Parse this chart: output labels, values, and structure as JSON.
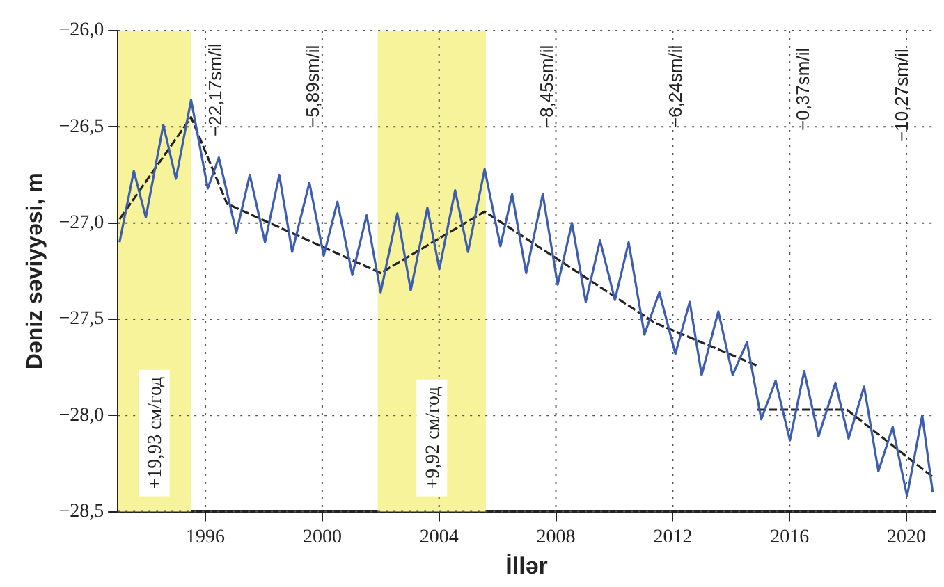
{
  "chart_data": {
    "type": "line",
    "xlabel": "İllər",
    "ylabel": "Dəniz səviyyəsi, m",
    "xlim": [
      1993,
      2021
    ],
    "ylim": [
      -28.5,
      -26.0
    ],
    "xticks": [
      1996,
      2000,
      2004,
      2008,
      2012,
      2016,
      2020
    ],
    "yticks": [
      {
        "value": -28.5,
        "label": "−28,5"
      },
      {
        "value": -28.0,
        "label": "−28,0"
      },
      {
        "value": -27.5,
        "label": "−27,5"
      },
      {
        "value": -27.0,
        "label": "−27,0"
      },
      {
        "value": -26.5,
        "label": "−26,5"
      },
      {
        "value": -26.0,
        "label": "−26,0"
      }
    ],
    "grid": true,
    "series": [
      {
        "color": "#3d5db0",
        "x": [
          1993.06,
          1993.55,
          1993.96,
          1994.56,
          1994.99,
          1995.51,
          1996.08,
          1996.46,
          1997.06,
          1997.52,
          1998.04,
          1998.53,
          1998.97,
          1999.56,
          2000.05,
          2000.52,
          2001.03,
          2001.52,
          2002.0,
          2002.57,
          2003.03,
          2003.6,
          2004.01,
          2004.55,
          2004.99,
          2005.56,
          2006.1,
          2006.5,
          2006.98,
          2007.55,
          2008.06,
          2008.55,
          2009.02,
          2009.51,
          2010.02,
          2010.49,
          2011.03,
          2011.54,
          2012.09,
          2012.58,
          2012.99,
          2013.56,
          2014.05,
          2014.54,
          2015.03,
          2015.52,
          2016.01,
          2016.5,
          2016.99,
          2017.57,
          2018.02,
          2018.55,
          2019.04,
          2019.53,
          2020.02,
          2020.54,
          2020.9
        ],
        "values": [
          -27.1,
          -26.73,
          -26.97,
          -26.49,
          -26.77,
          -26.36,
          -26.82,
          -26.66,
          -27.05,
          -26.75,
          -27.1,
          -26.75,
          -27.15,
          -26.79,
          -27.17,
          -26.89,
          -27.27,
          -26.96,
          -27.36,
          -26.95,
          -27.35,
          -26.92,
          -27.24,
          -26.83,
          -27.15,
          -26.72,
          -27.12,
          -26.85,
          -27.26,
          -26.85,
          -27.32,
          -27.0,
          -27.41,
          -27.09,
          -27.4,
          -27.1,
          -27.58,
          -27.36,
          -27.68,
          -27.41,
          -27.79,
          -27.46,
          -27.79,
          -27.62,
          -28.02,
          -27.82,
          -28.13,
          -27.77,
          -28.11,
          -27.83,
          -28.12,
          -27.85,
          -28.29,
          -28.06,
          -28.42,
          -28.0,
          -28.4
        ]
      },
      {
        "type": "line",
        "color": "#222222",
        "line_style": "dashed",
        "x": [
          1993.06,
          1995.51,
          1996.74,
          2002.0,
          2005.56,
          2011.4,
          2014.87,
          2014.88,
          2014.9,
          2017.96,
          2020.9
        ],
        "values": [
          -26.98,
          -26.45,
          -26.9,
          -27.26,
          -26.94,
          -27.52,
          -27.74,
          null,
          -27.97,
          -27.97,
          -28.32
        ]
      }
    ],
    "bands": [
      {
        "axis": "x",
        "from": 1993,
        "to": 1995.5,
        "label": "+19,93 см/год",
        "color": "#f7f39b"
      },
      {
        "axis": "x",
        "from": 2001.9,
        "to": 2005.6,
        "label": "+9,92 см/год",
        "color": "#f7f39b"
      }
    ],
    "annotations": [
      "−22,17sm/il",
      "−5,89sm/il",
      "−8,45sm/il",
      "−6,24sm/il",
      "−0,37sm/il",
      "−10,27sm/il"
    ]
  }
}
